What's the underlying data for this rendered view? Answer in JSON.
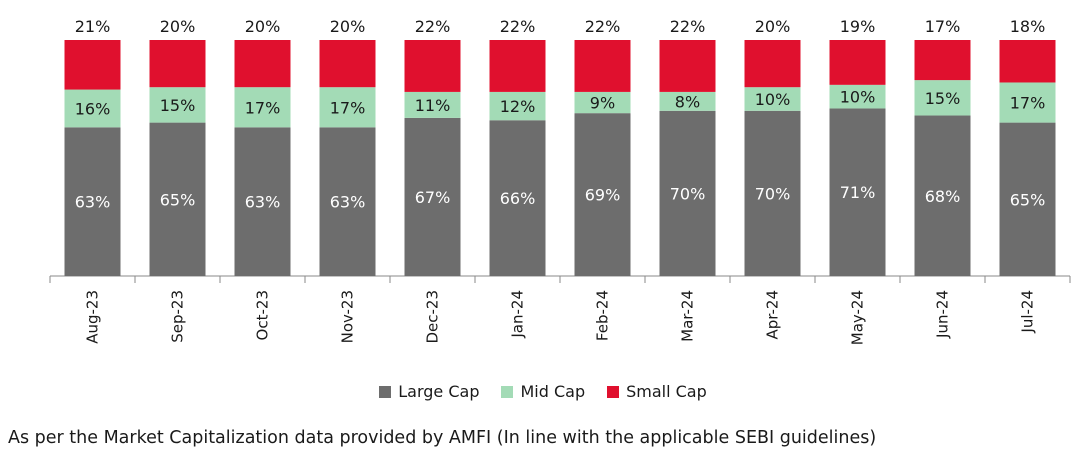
{
  "chart_data": {
    "type": "bar",
    "stacked": true,
    "percent_stacked": true,
    "categories": [
      "Aug-23",
      "Sep-23",
      "Oct-23",
      "Nov-23",
      "Dec-23",
      "Jan-24",
      "Feb-24",
      "Mar-24",
      "Apr-24",
      "May-24",
      "Jun-24",
      "Jul-24"
    ],
    "series": [
      {
        "name": "Large Cap",
        "color": "#6d6d6d",
        "label_color": "#ffffff",
        "values": [
          63,
          65,
          63,
          63,
          67,
          66,
          69,
          70,
          70,
          71,
          68,
          65
        ]
      },
      {
        "name": "Mid Cap",
        "color": "#a3dbb6",
        "label_color": "#1a1a1a",
        "values": [
          16,
          15,
          17,
          17,
          11,
          12,
          9,
          8,
          10,
          10,
          15,
          17
        ]
      },
      {
        "name": "Small Cap",
        "color": "#e0102e",
        "label_color": "#1a1a1a",
        "values": [
          21,
          20,
          20,
          20,
          22,
          22,
          22,
          22,
          20,
          19,
          17,
          18
        ]
      }
    ],
    "value_suffix": "%",
    "legend_position": "bottom",
    "grid": false
  },
  "footnote": "As per the Market Capitalization data provided by AMFI (In line with the applicable SEBI guidelines)"
}
